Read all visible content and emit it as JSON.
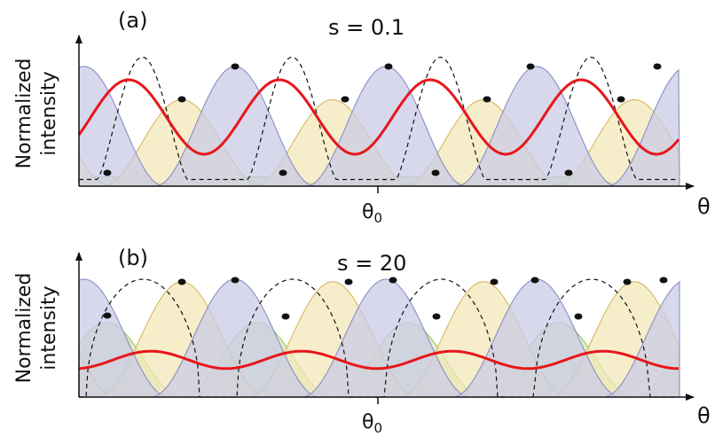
{
  "panels": [
    {
      "label": "(a)",
      "param": "s = 0.1",
      "ylabel_line1": "Normalized",
      "ylabel_line2": "intensity",
      "xlabel": "θ",
      "tick": "θ",
      "tick_sub": "0"
    },
    {
      "label": "(b)",
      "param": "s = 20",
      "ylabel_line1": "Normalized",
      "ylabel_line2": "intensity",
      "xlabel": "θ",
      "tick": "θ",
      "tick_sub": "0"
    }
  ],
  "colors": {
    "blue_fill": "#c9cbe6",
    "blue_stroke": "#8a8fc4",
    "yellow_fill": "#f3e7b9",
    "yellow_stroke": "#d9b85c",
    "green_fill": "#d6eab4",
    "green_stroke": "#9cc468",
    "red_curve": "#e8161b",
    "dashed": "#111111"
  }
}
